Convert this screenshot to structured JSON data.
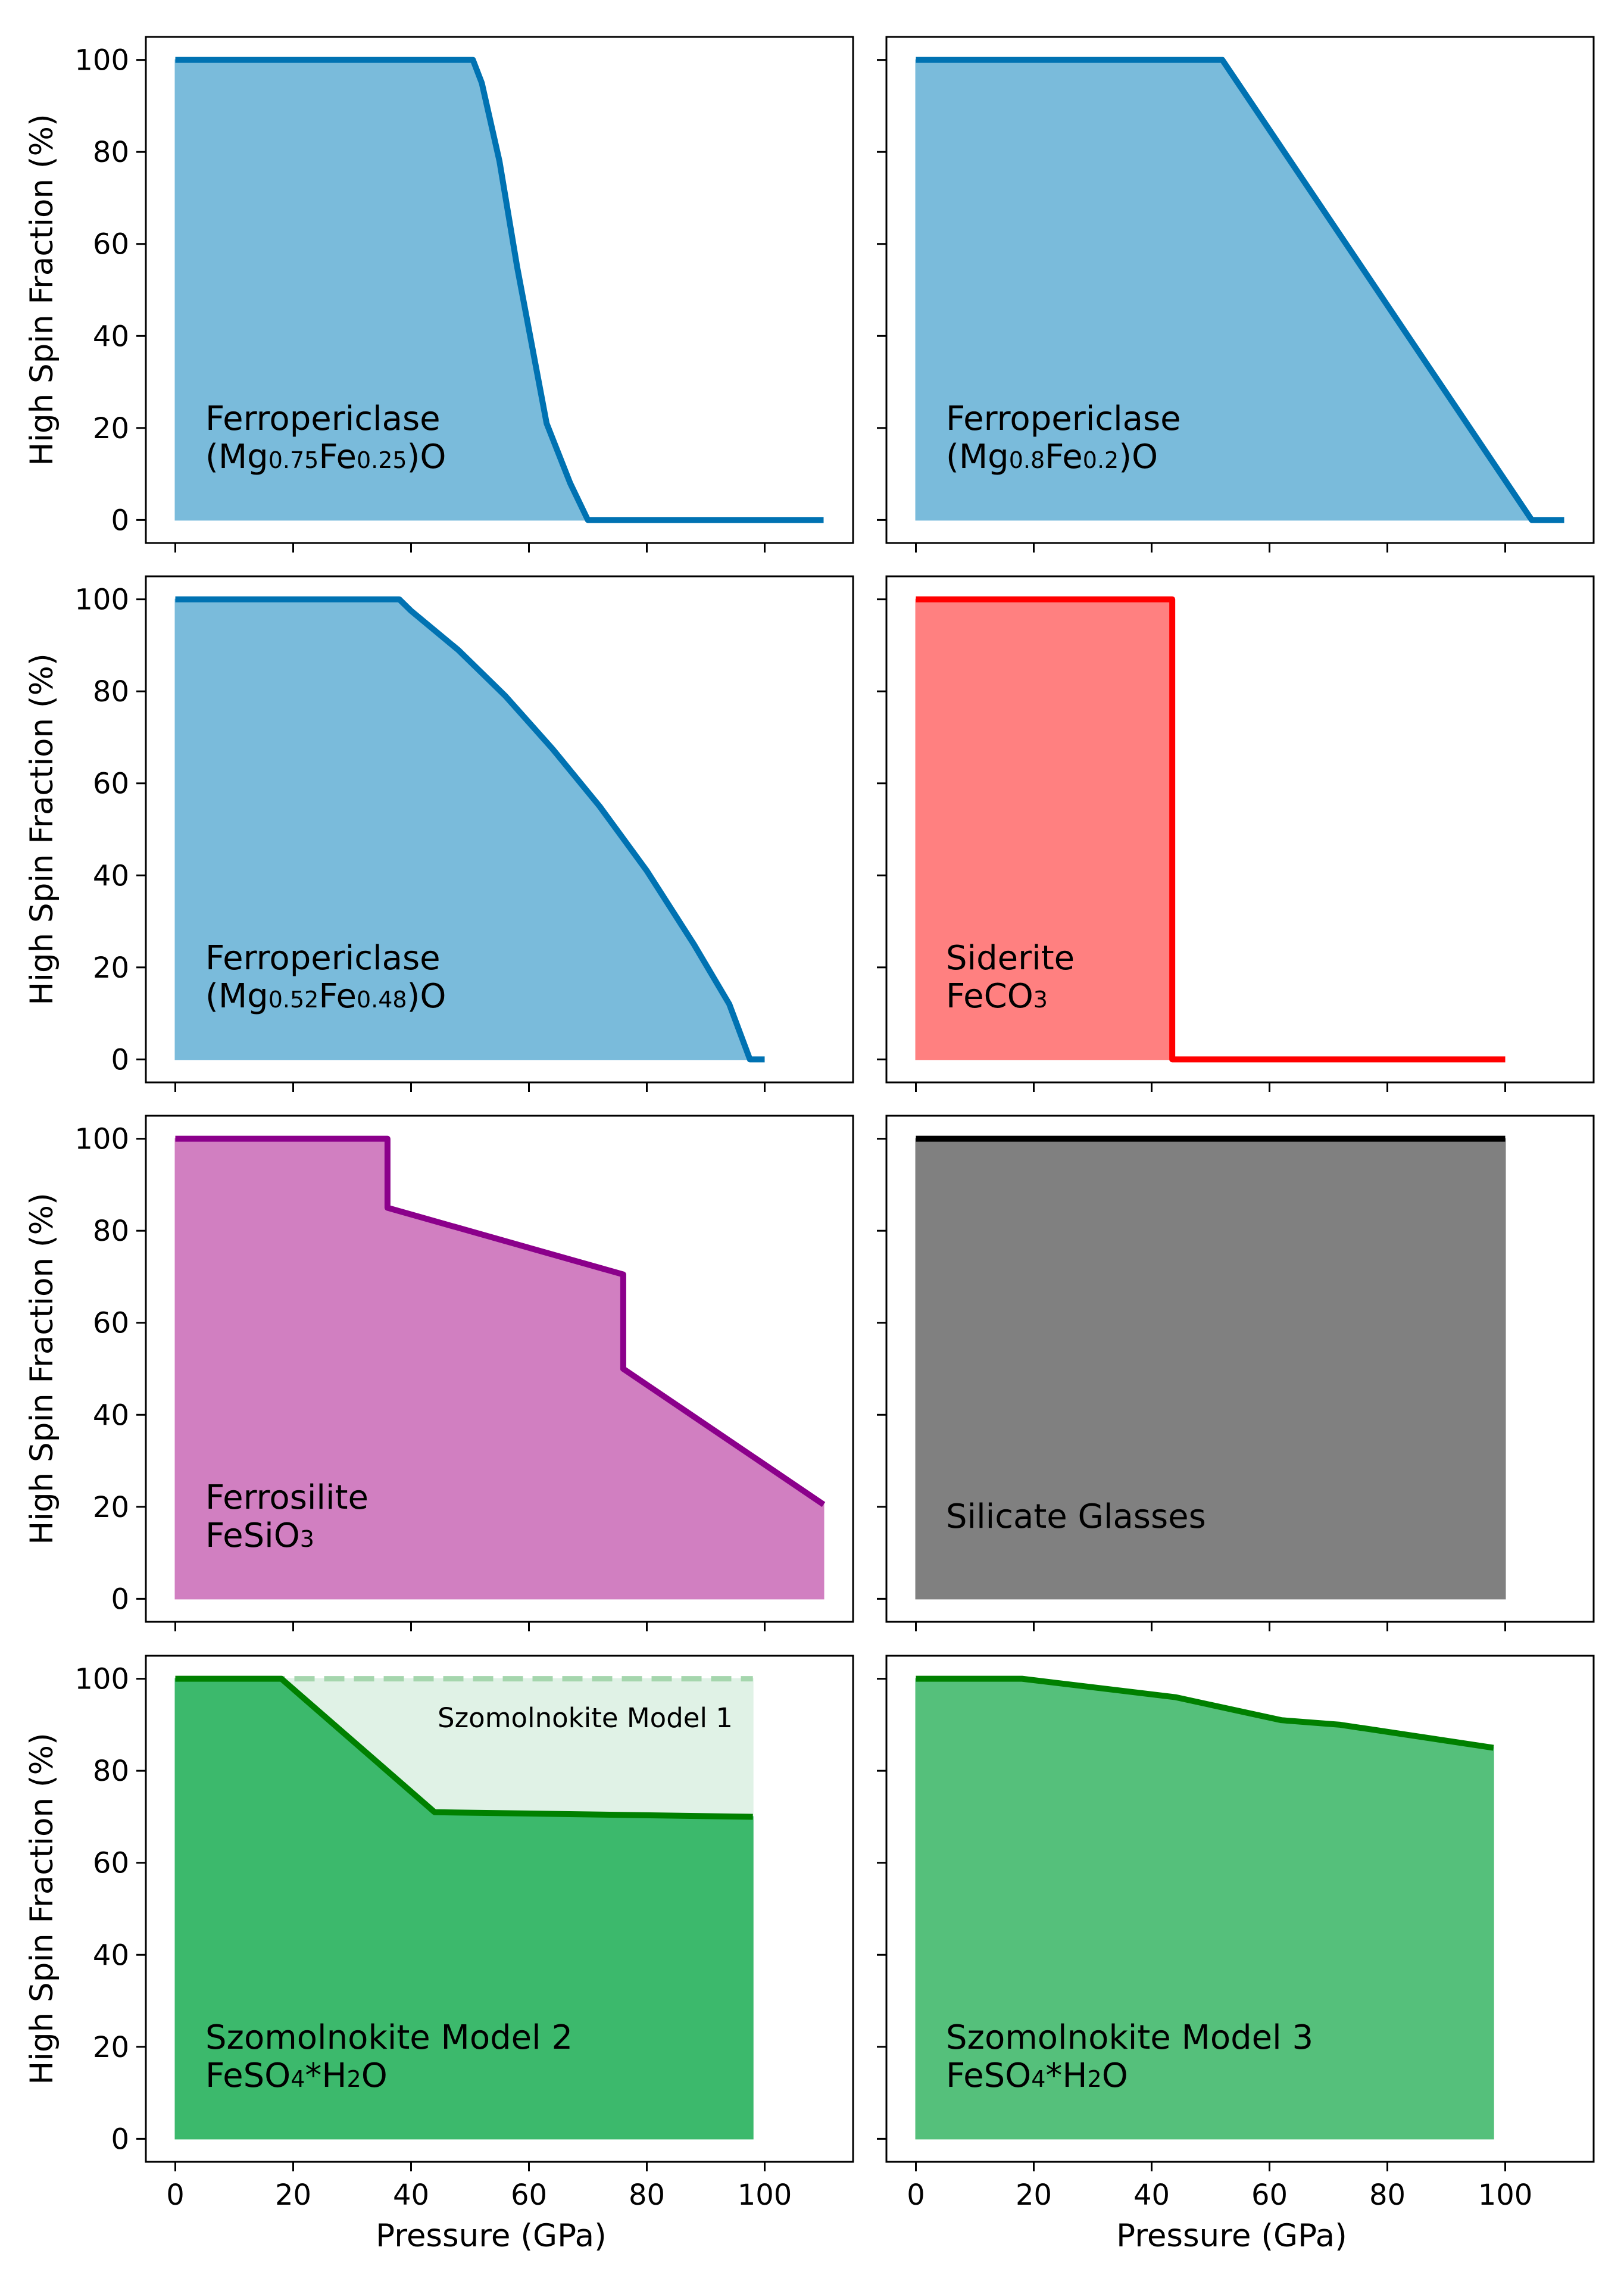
{
  "chart_data": [
    {
      "type": "area",
      "panel": "row1-left",
      "label_lines": [
        [
          "Ferropericlase"
        ],
        [
          "(Mg",
          {
            "sub": "0.75"
          },
          "Fe",
          {
            "sub": "0.25"
          },
          ")O"
        ]
      ],
      "xlim": [
        -5,
        115
      ],
      "ylim": [
        -5,
        105
      ],
      "ylabel": "High Spin Fraction (%)",
      "series": [
        {
          "name": "high spin fraction",
          "color": "#0072b2",
          "fill": "#7abbdb",
          "fill_opacity": 1,
          "x": [
            0,
            50.5,
            52,
            55,
            58,
            60.5,
            63,
            67,
            70,
            110
          ],
          "y": [
            100,
            100,
            95,
            78,
            55,
            38,
            21,
            8,
            0,
            0
          ]
        }
      ]
    },
    {
      "type": "area",
      "panel": "row1-right",
      "label_lines": [
        [
          "Ferropericlase"
        ],
        [
          "(Mg",
          {
            "sub": "0.8"
          },
          "Fe",
          {
            "sub": "0.2"
          },
          ")O"
        ]
      ],
      "xlim": [
        -5,
        115
      ],
      "ylim": [
        -5,
        105
      ],
      "series": [
        {
          "name": "high spin fraction",
          "color": "#0072b2",
          "fill": "#7abbdb",
          "fill_opacity": 1,
          "x": [
            0,
            52,
            104.5,
            110
          ],
          "y": [
            100,
            100,
            0,
            0
          ]
        }
      ]
    },
    {
      "type": "area",
      "panel": "row2-left",
      "label_lines": [
        [
          "Ferropericlase"
        ],
        [
          "(Mg",
          {
            "sub": "0.52"
          },
          "Fe",
          {
            "sub": "0.48"
          },
          ")O"
        ]
      ],
      "xlim": [
        -5,
        115
      ],
      "ylim": [
        -5,
        105
      ],
      "ylabel": "High Spin Fraction (%)",
      "series": [
        {
          "name": "high spin fraction",
          "color": "#0072b2",
          "fill": "#7abbdb",
          "fill_opacity": 1,
          "x": [
            0,
            38,
            40,
            48,
            56,
            64,
            72,
            80,
            88,
            94,
            97.5,
            100
          ],
          "y": [
            100,
            100,
            97.5,
            89,
            79,
            67.5,
            55,
            41,
            25,
            12,
            0,
            0
          ]
        }
      ]
    },
    {
      "type": "area",
      "panel": "row2-right",
      "label_lines": [
        [
          "Siderite"
        ],
        [
          "FeCO",
          {
            "sub": "3"
          }
        ]
      ],
      "xlim": [
        -5,
        115
      ],
      "ylim": [
        -5,
        105
      ],
      "series": [
        {
          "name": "high spin fraction",
          "color": "#ff0000",
          "fill": "#ff8080",
          "fill_opacity": 1,
          "x": [
            0,
            43.5,
            43.5,
            100
          ],
          "y": [
            100,
            100,
            0,
            0
          ],
          "fill_x_end": 43.5
        }
      ]
    },
    {
      "type": "area",
      "panel": "row3-left",
      "label_lines": [
        [
          "Ferrosilite"
        ],
        [
          "FeSiO",
          {
            "sub": "3"
          }
        ]
      ],
      "xlim": [
        -5,
        115
      ],
      "ylim": [
        -5,
        105
      ],
      "ylabel": "High Spin Fraction (%)",
      "series": [
        {
          "name": "high spin fraction",
          "color": "#8b008b",
          "fill": "#d17fc1",
          "fill_opacity": 1,
          "x": [
            0,
            36,
            36,
            76,
            76,
            110
          ],
          "y": [
            100,
            100,
            85,
            70.5,
            50,
            20.5
          ]
        }
      ]
    },
    {
      "type": "area",
      "panel": "row3-right",
      "label_lines": [
        [
          "Silicate Glasses"
        ]
      ],
      "xlim": [
        -5,
        115
      ],
      "ylim": [
        -5,
        105
      ],
      "series": [
        {
          "name": "high spin fraction",
          "color": "#000000",
          "fill": "#808080",
          "fill_opacity": 1,
          "x": [
            0,
            100
          ],
          "y": [
            100,
            100
          ]
        }
      ]
    },
    {
      "type": "area",
      "panel": "row4-left",
      "label_lines": [
        [
          "Szomolnokite Model 2"
        ],
        [
          "FeSO",
          {
            "sub": "4"
          },
          "*H",
          {
            "sub": "2"
          },
          "O"
        ]
      ],
      "annotation": "Szomolnokite Model 1",
      "xlim": [
        -5,
        115
      ],
      "ylim": [
        -5,
        105
      ],
      "ylabel": "High Spin Fraction (%)",
      "xlabel": "Pressure (GPa)",
      "xticks": [
        0,
        20,
        40,
        60,
        80,
        100
      ],
      "series": [
        {
          "name": "Szomolnokite Model 1",
          "color": "#a5d6ad",
          "fill": "#e0f2e6",
          "fill_opacity": 1,
          "dashed": true,
          "x": [
            0,
            98
          ],
          "y": [
            100,
            100
          ]
        },
        {
          "name": "Szomolnokite Model 2",
          "color": "#008000",
          "fill": "#3cb96c",
          "fill_opacity": 1,
          "x": [
            0,
            18,
            44,
            98
          ],
          "y": [
            100,
            100,
            71,
            70
          ]
        }
      ]
    },
    {
      "type": "area",
      "panel": "row4-right",
      "label_lines": [
        [
          "Szomolnokite Model 3"
        ],
        [
          "FeSO",
          {
            "sub": "4"
          },
          "*H",
          {
            "sub": "2"
          },
          "O"
        ]
      ],
      "xlim": [
        -5,
        115
      ],
      "ylim": [
        -5,
        105
      ],
      "xlabel": "Pressure (GPa)",
      "xticks": [
        0,
        20,
        40,
        60,
        80,
        100
      ],
      "series": [
        {
          "name": "Szomolnokite Model 3",
          "color": "#008000",
          "fill": "#55c07b",
          "fill_opacity": 1,
          "x": [
            0,
            18,
            44,
            62,
            72,
            98
          ],
          "y": [
            100,
            100,
            96,
            91,
            90,
            85
          ]
        }
      ]
    }
  ],
  "yticks": [
    0,
    20,
    40,
    60,
    80,
    100
  ]
}
